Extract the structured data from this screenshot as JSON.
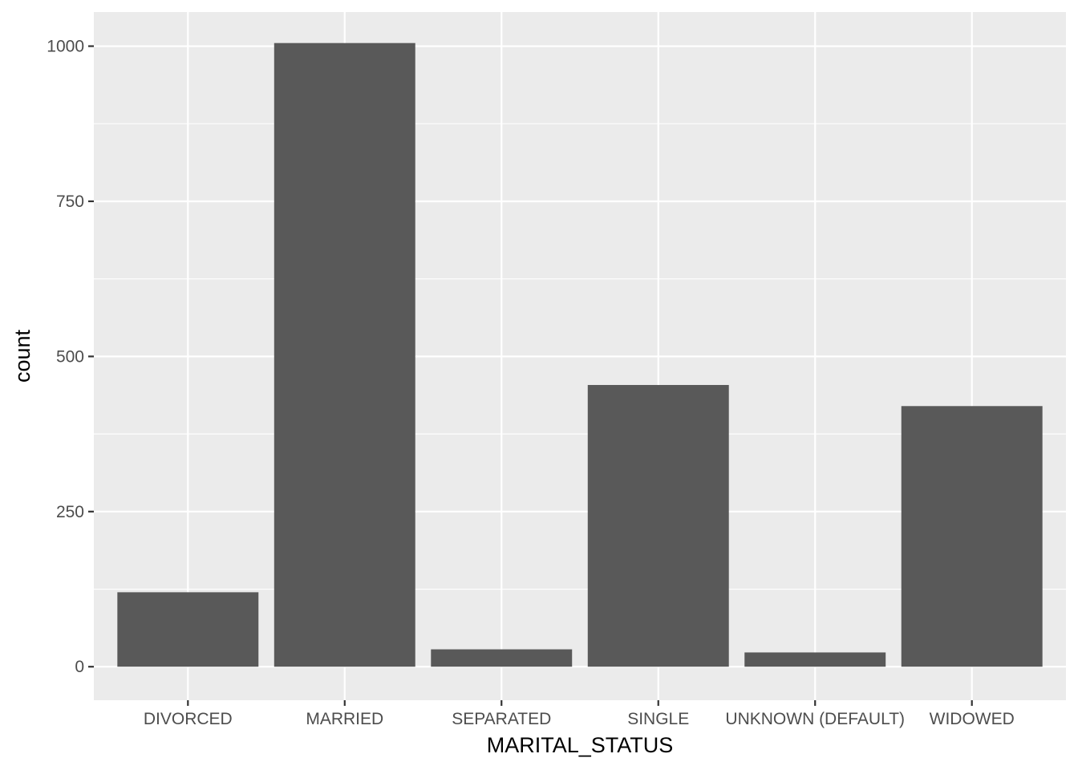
{
  "chart_data": {
    "type": "bar",
    "title": "",
    "xlabel": "MARITAL_STATUS",
    "ylabel": "count",
    "categories": [
      "DIVORCED",
      "MARRIED",
      "SEPARATED",
      "SINGLE",
      "UNKNOWN (DEFAULT)",
      "WIDOWED"
    ],
    "values": [
      120,
      1005,
      28,
      454,
      23,
      420
    ],
    "ylim": [
      -54,
      1055
    ],
    "yticks": [
      0,
      250,
      500,
      750,
      1000
    ],
    "yminor": [
      125,
      375,
      625,
      875
    ],
    "grid": true,
    "legend": "none",
    "colors": {
      "panel": "#EBEBEB",
      "bar": "#595959",
      "grid": "#FFFFFF",
      "tick_text": "#4D4D4D",
      "title_text": "#000000"
    }
  }
}
